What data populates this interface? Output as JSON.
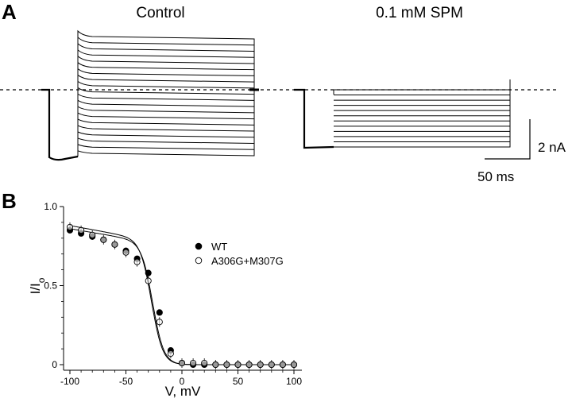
{
  "panels": {
    "a": "A",
    "b": "B"
  },
  "traces": {
    "control_label": "Control",
    "spm_label": "0.1 mM SPM",
    "scale_current": "2 nA",
    "scale_time": "50 ms",
    "control_sweep_count": 20,
    "spm_sweep_count": 12
  },
  "chart_data": {
    "type": "scatter",
    "xlabel": "V, mV",
    "ylabel_main": "I/I",
    "ylabel_sub": "o",
    "xlim": [
      -100,
      100
    ],
    "ylim": [
      0,
      1.0
    ],
    "xticks": [
      -100,
      -50,
      0,
      50,
      100
    ],
    "yticks": [
      0,
      0.5,
      1.0
    ],
    "ytick_labels": [
      "0",
      "0.5",
      "1.0"
    ],
    "legend_position": "right",
    "series": [
      {
        "name": "WT",
        "marker": "filled-circle",
        "color": "#000000",
        "x": [
          -100,
          -90,
          -80,
          -70,
          -60,
          -50,
          -40,
          -30,
          -20,
          -10,
          0,
          10,
          20,
          30,
          40,
          50,
          60,
          70,
          80,
          90,
          100
        ],
        "y": [
          0.85,
          0.83,
          0.81,
          0.79,
          0.76,
          0.72,
          0.67,
          0.58,
          0.33,
          0.09,
          0.01,
          0.0,
          0.0,
          0.0,
          0.0,
          0.0,
          0.0,
          0.0,
          0.0,
          0.0,
          0.0
        ],
        "fit": {
          "top": 0.86,
          "v_half": -26,
          "k": 5,
          "slope": 0.0024
        }
      },
      {
        "name": "A306G+M307G",
        "marker": "open-circle",
        "color": "#000000",
        "x": [
          -100,
          -90,
          -80,
          -70,
          -60,
          -50,
          -40,
          -30,
          -20,
          -10,
          0,
          10,
          20,
          30,
          40,
          50,
          60,
          70,
          80,
          90,
          100
        ],
        "y": [
          0.87,
          0.85,
          0.82,
          0.79,
          0.76,
          0.71,
          0.65,
          0.53,
          0.27,
          0.07,
          0.01,
          0.01,
          0.01,
          0.0,
          0.0,
          0.0,
          0.0,
          0.0,
          0.0,
          0.0,
          0.0
        ],
        "fit": {
          "top": 0.88,
          "v_half": -27,
          "k": 5,
          "slope": 0.0026
        }
      }
    ]
  }
}
